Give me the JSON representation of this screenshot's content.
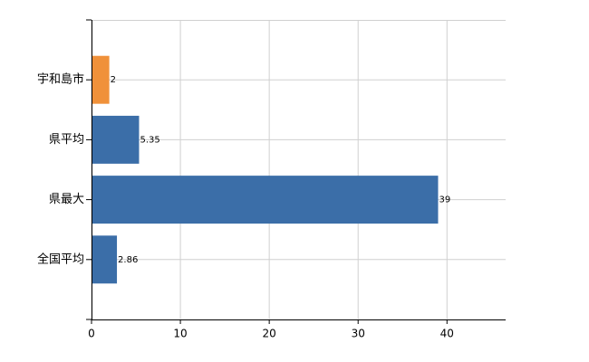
{
  "chart_data": {
    "type": "hbar",
    "categories": [
      "宇和島市",
      "県平均",
      "県最大",
      "全国平均"
    ],
    "values": [
      2,
      5.35,
      39,
      2.86
    ],
    "colors": [
      "#f0913a",
      "#3b6ea8",
      "#3b6ea8",
      "#3b6ea8"
    ],
    "xlim": [
      0,
      46.6
    ],
    "xticks": [
      0,
      10,
      20,
      30,
      40
    ],
    "grid": true
  }
}
